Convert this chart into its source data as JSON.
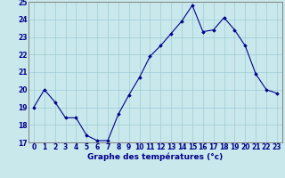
{
  "x": [
    0,
    1,
    2,
    3,
    4,
    5,
    6,
    7,
    8,
    9,
    10,
    11,
    12,
    13,
    14,
    15,
    16,
    17,
    18,
    19,
    20,
    21,
    22,
    23
  ],
  "y": [
    19.0,
    20.0,
    19.3,
    18.4,
    18.4,
    17.4,
    17.1,
    17.1,
    18.6,
    19.7,
    20.7,
    21.9,
    22.5,
    23.2,
    23.9,
    24.8,
    23.3,
    23.4,
    24.1,
    23.4,
    22.5,
    20.9,
    20.0,
    19.8
  ],
  "xlabel": "Graphe des températures (°c)",
  "ylim": [
    17,
    25
  ],
  "xlim": [
    -0.5,
    23.5
  ],
  "yticks": [
    17,
    18,
    19,
    20,
    21,
    22,
    23,
    24,
    25
  ],
  "xticks": [
    0,
    1,
    2,
    3,
    4,
    5,
    6,
    7,
    8,
    9,
    10,
    11,
    12,
    13,
    14,
    15,
    16,
    17,
    18,
    19,
    20,
    21,
    22,
    23
  ],
  "line_color": "#00008b",
  "marker": "D",
  "marker_size": 1.8,
  "bg_color": "#c8e8ec",
  "grid_color": "#a0ccd4",
  "axis_label_color": "#00008b",
  "tick_color": "#00008b",
  "xlabel_fontsize": 6.5,
  "tick_fontsize": 5.5,
  "linewidth": 0.8
}
